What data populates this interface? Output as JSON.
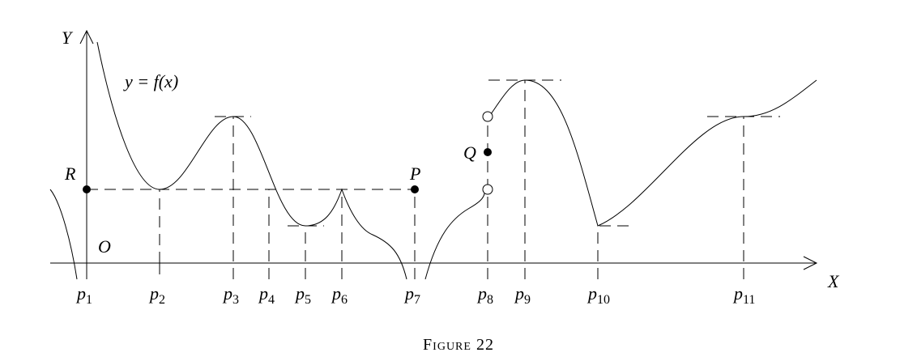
{
  "axes": {
    "x_label": "X",
    "y_label": "Y",
    "origin_label": "O"
  },
  "function_label": "y = f(x)",
  "points": {
    "R": "R",
    "P": "P",
    "Q": "Q"
  },
  "x_ticks": [
    {
      "letter": "p",
      "index": "1"
    },
    {
      "letter": "p",
      "index": "2"
    },
    {
      "letter": "p",
      "index": "3"
    },
    {
      "letter": "p",
      "index": "4"
    },
    {
      "letter": "p",
      "index": "5"
    },
    {
      "letter": "p",
      "index": "6"
    },
    {
      "letter": "p",
      "index": "7"
    },
    {
      "letter": "p",
      "index": "8"
    },
    {
      "letter": "p",
      "index": "9"
    },
    {
      "letter": "p",
      "index": "10"
    },
    {
      "letter": "p",
      "index": "11"
    }
  ],
  "caption": "Figure 22"
}
